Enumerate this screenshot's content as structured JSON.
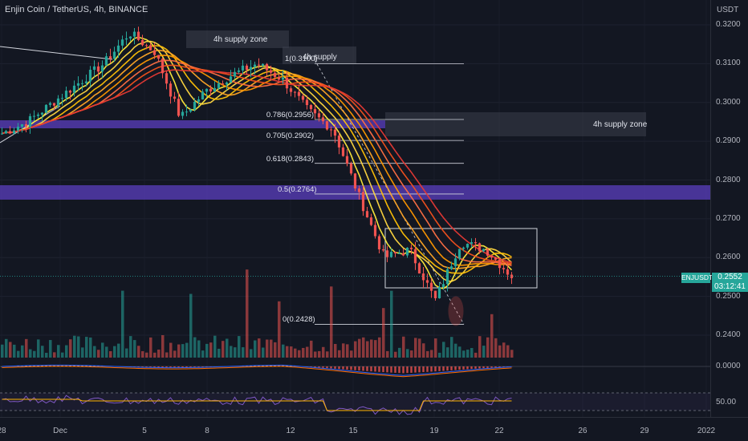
{
  "header": {
    "title": "Enjin Coin / TetherUS, 4h, BINANCE",
    "currency": "USDT"
  },
  "price_axis": {
    "ticks": [
      "0.3200",
      "0.3100",
      "0.3000",
      "0.2900",
      "0.2800",
      "0.2700",
      "0.2600",
      "0.2500",
      "0.2400"
    ]
  },
  "macd_axis": {
    "tick": "0.0000"
  },
  "rsi_axis": {
    "tick": "50.00"
  },
  "last_price": {
    "symbol": "ENJUSDT",
    "value": "0.2552",
    "countdown": "03:12:41",
    "color": "#26a69a"
  },
  "date_axis": {
    "labels": [
      "28",
      "Dec",
      "5",
      "8",
      "12",
      "15",
      "19",
      "22",
      "26",
      "29",
      "2022"
    ]
  },
  "annotations": {
    "supply_zone_top": "4h supply zone",
    "supply_zone_mid": "4h supply",
    "supply_zone_right": "4h supply zone"
  },
  "fib_levels": [
    {
      "label": "1(0.3100)",
      "price": 0.31
    },
    {
      "label": "0.786(0.2956)",
      "price": 0.2956
    },
    {
      "label": "0.705(0.2902)",
      "price": 0.2902
    },
    {
      "label": "0.618(0.2843)",
      "price": 0.2843
    },
    {
      "label": "0.5(0.2764)",
      "price": 0.2764
    },
    {
      "label": "0(0.2428)",
      "price": 0.2428
    }
  ],
  "colors": {
    "background": "#131722",
    "up": "#26a69a",
    "down": "#ef5350",
    "demand_band": "#5b3fbf",
    "ribbon": [
      "#ffeb3b",
      "#ffd740",
      "#ffc107",
      "#ffa726",
      "#ff9800",
      "#ff7043",
      "#f4511e",
      "#e53935"
    ]
  },
  "chart_data": {
    "type": "line",
    "pair": "ENJ/USDT",
    "timeframe": "4h",
    "ylim": [
      0.234,
      0.324
    ],
    "x_ticks": [
      "28",
      "Dec",
      "5",
      "8",
      "12",
      "15",
      "19",
      "22",
      "26",
      "29",
      "2022"
    ],
    "price_path": [
      0.292,
      0.295,
      0.3,
      0.305,
      0.31,
      0.318,
      0.313,
      0.296,
      0.303,
      0.307,
      0.31,
      0.306,
      0.298,
      0.293,
      0.276,
      0.26,
      0.262,
      0.249,
      0.264,
      0.262,
      0.2552
    ],
    "last": 0.2552
  }
}
